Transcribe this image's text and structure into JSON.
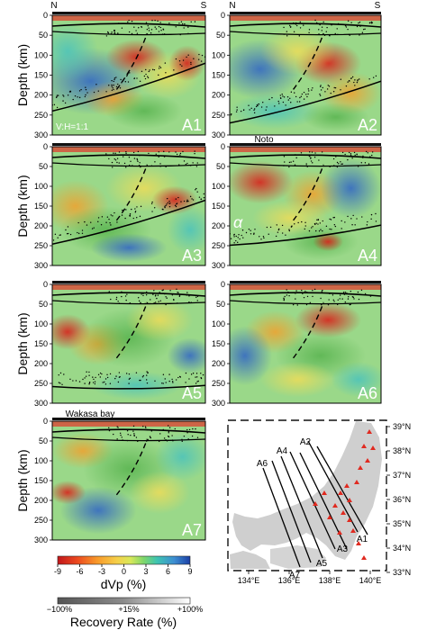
{
  "orientation": {
    "left": "N",
    "right": "S"
  },
  "axis": {
    "ylabel": "Depth (km)",
    "depth_ticks": [
      "0",
      "50",
      "100",
      "150",
      "200",
      "250",
      "300"
    ]
  },
  "panels": [
    {
      "id": "A1",
      "annotation": "V:H=1:1"
    },
    {
      "id": "A2",
      "annotation": ""
    },
    {
      "id": "A3",
      "annotation": ""
    },
    {
      "id": "A4",
      "annotation": "α",
      "top_label": "Noto"
    },
    {
      "id": "A5",
      "annotation": ""
    },
    {
      "id": "A6",
      "annotation": ""
    },
    {
      "id": "A7",
      "annotation": "",
      "top_label": "Wakasa bay"
    }
  ],
  "colorbar": {
    "label": "dVp (%)",
    "ticks": [
      "-9",
      "-6",
      "-3",
      "0",
      "3",
      "6",
      "9"
    ],
    "colors": [
      "#c2161a",
      "#ec4a1f",
      "#f89a2a",
      "#f5d04a",
      "#d8e85a",
      "#7ed66b",
      "#3ec4b1",
      "#3d8ed2",
      "#1b3fa5"
    ]
  },
  "recovery": {
    "label": "Recovery Rate (%)",
    "ticks": [
      "−100%",
      "+15%",
      "+100%"
    ]
  },
  "map": {
    "lat_labels": [
      "39°N",
      "38°N",
      "37°N",
      "36°N",
      "35°N",
      "34°N",
      "33°N"
    ],
    "lon_labels": [
      "134°E",
      "136°E",
      "138°E",
      "140°E"
    ],
    "profiles": [
      "A1",
      "A2",
      "A3",
      "A4",
      "A5",
      "A6",
      "A7"
    ]
  }
}
